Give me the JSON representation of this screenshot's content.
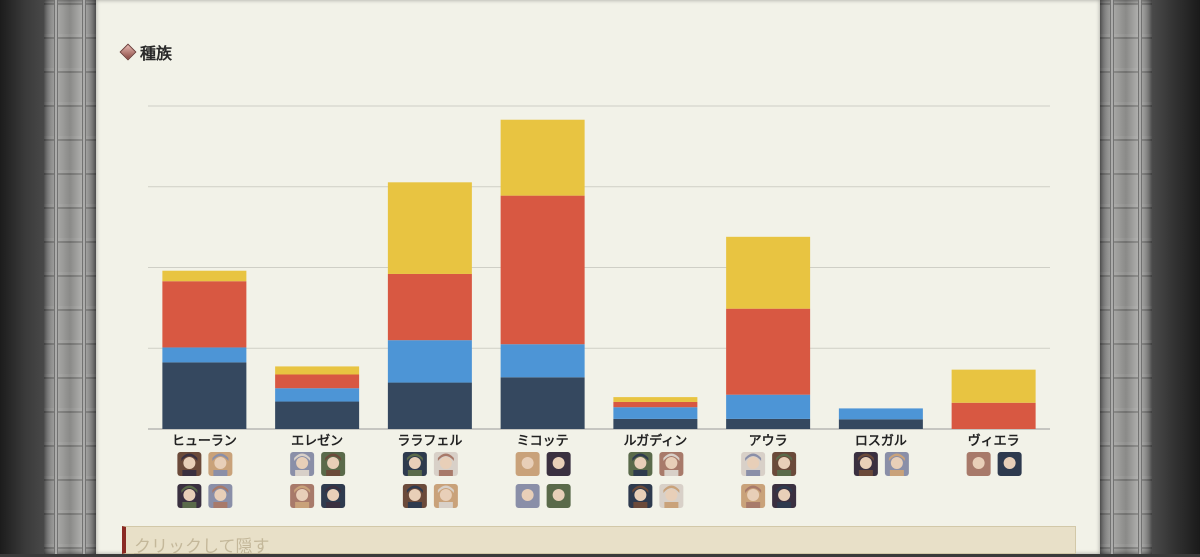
{
  "section": {
    "heading": "種族"
  },
  "toggle": {
    "label": "クリックして隠す"
  },
  "chart_data": {
    "type": "bar",
    "stacked": true,
    "categories": [
      "ヒューラン",
      "エレゼン",
      "ララフェル",
      "ミコッテ",
      "ルガディン",
      "アウラ",
      "ロスガル",
      "ヴィエラ"
    ],
    "series": [
      {
        "color": "#35485f",
        "values": [
          16.5,
          6.8,
          11.5,
          12.8,
          2.5,
          2.5,
          2.4,
          0
        ]
      },
      {
        "color": "#4d95d6",
        "values": [
          3.7,
          3.3,
          10.5,
          8.2,
          2.9,
          6.0,
          2.7,
          0
        ]
      },
      {
        "color": "#d85842",
        "values": [
          16.4,
          3.4,
          16.4,
          36.8,
          1.3,
          21.3,
          0,
          6.5
        ]
      },
      {
        "color": "#e8c441",
        "values": [
          2.6,
          2.0,
          22.7,
          18.8,
          1.2,
          17.8,
          0,
          8.2
        ]
      }
    ],
    "ylim": [
      0,
      80
    ],
    "gridlines": [
      0,
      20,
      40,
      60,
      80
    ],
    "grid": true,
    "y_tick_labels_visible": false,
    "portraits_per_category": [
      4,
      4,
      4,
      4,
      4,
      4,
      2,
      2
    ]
  }
}
